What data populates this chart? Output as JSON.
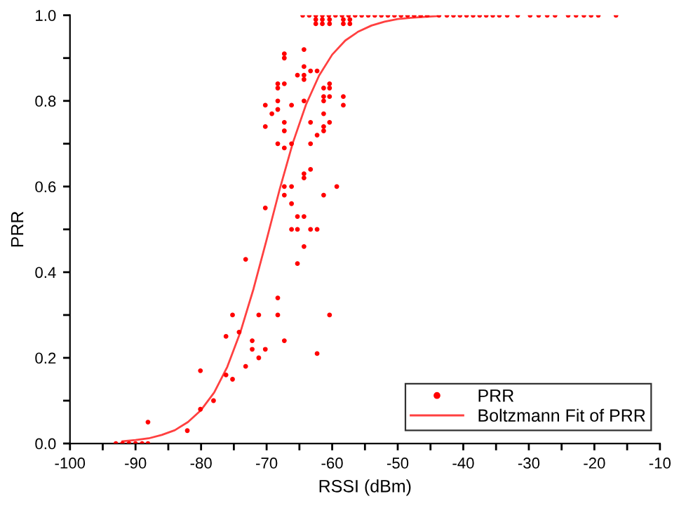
{
  "chart_data": {
    "type": "scatter",
    "xlabel": "RSSI (dBm)",
    "ylabel": "PRR",
    "xlim": [
      -100,
      -10
    ],
    "ylim": [
      0,
      1.0
    ],
    "xticks": [
      -100,
      {
        "value": -95,
        "label": null
      },
      -90,
      {
        "value": -85,
        "label": null
      },
      -80,
      {
        "value": -75,
        "label": null
      },
      -70,
      {
        "value": -65,
        "label": null
      },
      -60,
      {
        "value": -55,
        "label": null
      },
      -50,
      {
        "value": -45,
        "label": null
      },
      -40,
      {
        "value": -35,
        "label": null
      },
      -30,
      {
        "value": -25,
        "label": null
      },
      -20,
      {
        "value": -15,
        "label": null
      },
      -10
    ],
    "yticks": [
      {
        "value": 0,
        "label": "0.0"
      },
      {
        "value": 0.1,
        "label": null
      },
      0.2,
      {
        "value": 0.3,
        "label": null
      },
      0.4,
      {
        "value": 0.5,
        "label": null
      },
      0.6,
      {
        "value": 0.7,
        "label": null
      },
      0.8,
      {
        "value": 0.9,
        "label": null
      },
      {
        "value": 1.0,
        "label": "1.0"
      }
    ],
    "grid": false,
    "legend": "bottom right",
    "series": [
      {
        "name": "PRR",
        "marker": "circle",
        "color": "#ff0000",
        "x": [
          -93,
          -92,
          -91,
          -90,
          -89,
          -88.1,
          -88.1,
          -82.1,
          -80.1,
          -80.1,
          -78.1,
          -76.2,
          -76.2,
          -75.2,
          -75.2,
          -74.2,
          -73.2,
          -73.2,
          -72.2,
          -72.2,
          -71.2,
          -71.2,
          -70.2,
          -68.3,
          -68.3,
          -67.3,
          -65.3,
          -64.3,
          -62.3,
          -60.4,
          -70.2,
          -67.3,
          -66.2,
          -67.3,
          -66.2,
          -65.3,
          -64.3,
          -64.3,
          -63.3,
          -61.3,
          -59.3,
          -66.2,
          -65.3,
          -63.3,
          -62.3,
          -64.3,
          -70.2,
          -70.2,
          -69.2,
          -68.3,
          -68.3,
          -68.3,
          -67.3,
          -67.3,
          -67.3,
          -66.2,
          -66.2,
          -68.3,
          -68.3,
          -67.3,
          -67.3,
          -67.3,
          -64.3,
          -64.3,
          -65.3,
          -64.3,
          -64.3,
          -63.3,
          -62.3,
          -64.3,
          -63.3,
          -63.3,
          -62.3,
          -61.3,
          -60.4,
          -60.4,
          -61.3,
          -61.3,
          -60.4,
          -58.3,
          -58.3,
          -61.3,
          -61.3,
          -61.3,
          -60.4,
          -62.5,
          -61.5,
          -60.4,
          -58.3,
          -57.3,
          -62.5,
          -61.5,
          -60.4,
          -58.3,
          -57.3,
          -64.5,
          -63.5,
          -62.5,
          -61.5,
          -60.5,
          -59.5,
          -58.5,
          -57.5,
          -56.5,
          -55.5,
          -54.5,
          -53.5,
          -52.5,
          -51.5,
          -50.5,
          -49.5,
          -48.5,
          -47.5,
          -46.5,
          -45.5,
          -43.7,
          -42.5,
          -41.5,
          -40.5,
          -39.5,
          -38.5,
          -37.5,
          -36.5,
          -35.5,
          -34.5,
          -33.3,
          -31.7,
          -29.8,
          -28.5,
          -27.2,
          -26,
          -24,
          -22.8,
          -21.6,
          -20.5,
          -19.4,
          -16.7
        ],
        "values": [
          0,
          0,
          0,
          0,
          0,
          0,
          0.05,
          0.03,
          0.17,
          0.08,
          0.1,
          0.25,
          0.16,
          0.3,
          0.15,
          0.26,
          0.43,
          0.18,
          0.24,
          0.22,
          0.3,
          0.2,
          0.22,
          0.34,
          0.3,
          0.24,
          0.42,
          0.46,
          0.21,
          0.3,
          0.55,
          0.6,
          0.6,
          0.58,
          0.56,
          0.53,
          0.63,
          0.62,
          0.64,
          0.58,
          0.6,
          0.5,
          0.5,
          0.5,
          0.5,
          0.53,
          0.79,
          0.74,
          0.77,
          0.8,
          0.78,
          0.7,
          0.75,
          0.73,
          0.69,
          0.7,
          0.79,
          0.84,
          0.83,
          0.84,
          0.91,
          0.9,
          0.92,
          0.88,
          0.86,
          0.86,
          0.85,
          0.87,
          0.87,
          0.8,
          0.75,
          0.7,
          0.72,
          0.83,
          0.84,
          0.83,
          0.81,
          0.8,
          0.81,
          0.81,
          0.79,
          0.77,
          0.74,
          0.73,
          0.75,
          0.99,
          0.99,
          0.99,
          0.99,
          0.99,
          0.98,
          0.98,
          0.98,
          0.98,
          0.98,
          1,
          1,
          1,
          1,
          1,
          1,
          1,
          1,
          1,
          1,
          1,
          1,
          1,
          1,
          1,
          1,
          1,
          1,
          1,
          1,
          1,
          1,
          1,
          1,
          1,
          1,
          1,
          1,
          1,
          1,
          1,
          1,
          1,
          1,
          1,
          1,
          1,
          1,
          1,
          1,
          1,
          1
        ]
      },
      {
        "name": "Boltzmann Fit of PRR",
        "type": "line",
        "marker": "none",
        "line_style": "solid",
        "color": "#ff4040",
        "x": [
          -92,
          -90,
          -88,
          -86,
          -84,
          -82,
          -80,
          -78,
          -76,
          -74,
          -72,
          -70,
          -68,
          -66,
          -64,
          -62,
          -60,
          -58,
          -56,
          -54,
          -52,
          -50,
          -48,
          -46,
          -44
        ],
        "values": [
          0.005,
          0.008,
          0.012,
          0.02,
          0.031,
          0.05,
          0.078,
          0.119,
          0.179,
          0.26,
          0.361,
          0.476,
          0.594,
          0.702,
          0.791,
          0.859,
          0.908,
          0.941,
          0.962,
          0.976,
          0.985,
          0.991,
          0.994,
          0.996,
          0.998
        ]
      }
    ]
  }
}
